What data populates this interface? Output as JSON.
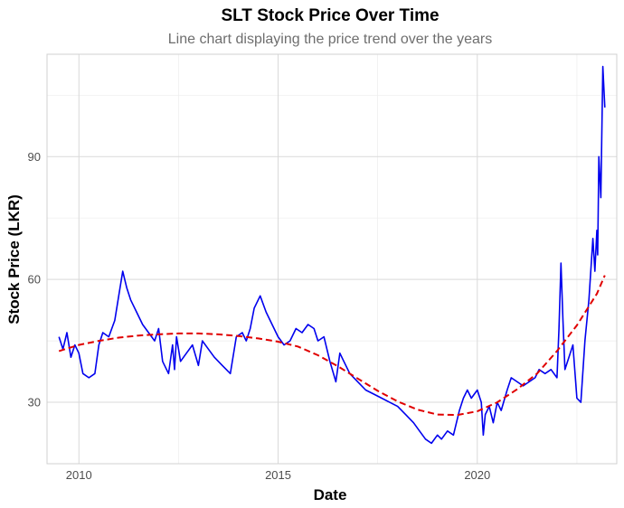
{
  "chart_data": {
    "type": "line",
    "title": "SLT Stock Price Over Time",
    "subtitle": "Line chart displaying the price trend over the years",
    "xlabel": "Date",
    "ylabel": "Stock Price (LKR)",
    "xlim": [
      2009.2,
      2023.5
    ],
    "ylim": [
      15,
      115
    ],
    "x_ticks": [
      2010,
      2015,
      2020
    ],
    "x_tick_labels": [
      "2010",
      "2015",
      "2020"
    ],
    "y_ticks": [
      30,
      60,
      90
    ],
    "y_tick_labels": [
      "30",
      "60",
      "90"
    ],
    "grid": true,
    "legend": "none",
    "colors": {
      "price": "#0000ee",
      "trend": "#e00000"
    },
    "series": [
      {
        "style": "solid",
        "x": [
          2009.5,
          2009.6,
          2009.7,
          2009.8,
          2009.9,
          2010.0,
          2010.1,
          2010.25,
          2010.4,
          2010.5,
          2010.6,
          2010.75,
          2010.9,
          2011.0,
          2011.1,
          2011.2,
          2011.3,
          2011.45,
          2011.6,
          2011.75,
          2011.9,
          2012.0,
          2012.1,
          2012.25,
          2012.35,
          2012.4,
          2012.45,
          2012.55,
          2012.7,
          2012.85,
          2013.0,
          2013.1,
          2013.25,
          2013.4,
          2013.6,
          2013.8,
          2013.95,
          2014.1,
          2014.2,
          2014.3,
          2014.4,
          2014.55,
          2014.7,
          2014.85,
          2015.0,
          2015.15,
          2015.3,
          2015.45,
          2015.6,
          2015.75,
          2015.9,
          2016.0,
          2016.15,
          2016.3,
          2016.45,
          2016.55,
          2016.65,
          2016.8,
          2017.0,
          2017.2,
          2017.4,
          2017.6,
          2017.8,
          2018.0,
          2018.2,
          2018.4,
          2018.55,
          2018.7,
          2018.85,
          2019.0,
          2019.1,
          2019.25,
          2019.4,
          2019.55,
          2019.65,
          2019.75,
          2019.85,
          2020.0,
          2020.1,
          2020.15,
          2020.2,
          2020.3,
          2020.4,
          2020.5,
          2020.6,
          2020.75,
          2020.85,
          2021.0,
          2021.15,
          2021.3,
          2021.45,
          2021.55,
          2021.7,
          2021.85,
          2022.0,
          2022.05,
          2022.1,
          2022.15,
          2022.2,
          2022.3,
          2022.4,
          2022.5,
          2022.6,
          2022.7,
          2022.8,
          2022.9,
          2022.95,
          2023.0,
          2023.02,
          2023.05,
          2023.1,
          2023.15,
          2023.2
        ],
        "values": [
          46,
          43,
          47,
          41,
          44,
          42,
          37,
          36,
          37,
          44,
          47,
          46,
          50,
          56,
          62,
          58,
          55,
          52,
          49,
          47,
          45,
          48,
          40,
          37,
          44,
          38,
          46,
          40,
          42,
          44,
          39,
          45,
          43,
          41,
          39,
          37,
          46,
          47,
          45,
          48,
          53,
          56,
          52,
          49,
          46,
          44,
          45,
          48,
          47,
          49,
          48,
          45,
          46,
          40,
          35,
          42,
          40,
          37,
          35,
          33,
          32,
          31,
          30,
          29,
          27,
          25,
          23,
          21,
          20,
          22,
          21,
          23,
          22,
          28,
          31,
          33,
          31,
          33,
          30,
          22,
          27,
          29,
          25,
          30,
          28,
          33,
          36,
          35,
          34,
          35,
          36,
          38,
          37,
          38,
          36,
          48,
          64,
          50,
          38,
          41,
          44,
          31,
          30,
          45,
          55,
          70,
          62,
          72,
          66,
          90,
          80,
          112,
          102
        ]
      },
      {
        "style": "dashed",
        "x": [
          2009.5,
          2010.0,
          2010.5,
          2011.0,
          2011.5,
          2012.0,
          2012.5,
          2013.0,
          2013.5,
          2014.0,
          2014.5,
          2015.0,
          2015.5,
          2016.0,
          2016.5,
          2017.0,
          2017.5,
          2018.0,
          2018.5,
          2019.0,
          2019.5,
          2020.0,
          2020.5,
          2021.0,
          2021.5,
          2022.0,
          2022.5,
          2023.0,
          2023.2
        ],
        "values": [
          42.5,
          44.0,
          45.0,
          45.8,
          46.3,
          46.6,
          46.8,
          46.8,
          46.6,
          46.2,
          45.6,
          44.8,
          43.6,
          41.5,
          38.8,
          35.8,
          32.8,
          30.2,
          28.2,
          27.0,
          26.9,
          27.8,
          30.0,
          33.2,
          37.0,
          42.5,
          48.8,
          56.5,
          61.0
        ]
      }
    ]
  }
}
